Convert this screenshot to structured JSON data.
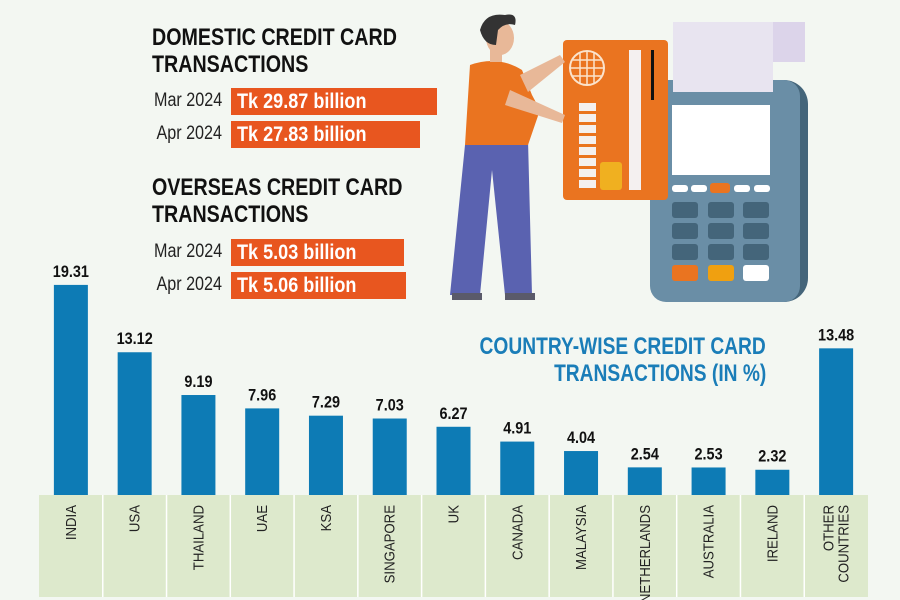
{
  "domestic": {
    "title_line1": "DOMESTIC CREDIT CARD",
    "title_line2": "TRANSACTIONS",
    "rows": [
      {
        "label": "Mar 2024",
        "value_text": "Tk 29.87 billion",
        "value": 29.87
      },
      {
        "label": "Apr 2024",
        "value_text": "Tk 27.83 billion",
        "value": 27.83
      }
    ]
  },
  "overseas": {
    "title_line1": "OVERSEAS CREDIT CARD",
    "title_line2": "TRANSACTIONS",
    "rows": [
      {
        "label": "Mar 2024",
        "value_text": "Tk 5.03 billion",
        "value": 5.03
      },
      {
        "label": "Apr 2024",
        "value_text": "Tk 5.06 billion",
        "value": 5.06
      }
    ]
  },
  "colors": {
    "orange": "#e8561f",
    "blue": "#0d7bb5",
    "title_blue": "#1a7db8",
    "band": "#dde9cc",
    "background": "#f3f7f2"
  },
  "chart_data": {
    "type": "bar",
    "title_line1": "COUNTRY-WISE CREDIT CARD",
    "title_line2": "TRANSACTIONS (IN %)",
    "categories": [
      "INDIA",
      "USA",
      "THAILAND",
      "UAE",
      "KSA",
      "SINGAPORE",
      "UK",
      "CANADA",
      "MALAYSIA",
      "NETHERLANDS",
      "AUSTRALIA",
      "IRELAND",
      "OTHER COUNTRIES"
    ],
    "values": [
      19.31,
      13.12,
      9.19,
      7.96,
      7.29,
      7.03,
      6.27,
      4.91,
      4.04,
      2.54,
      2.53,
      2.32,
      13.48
    ],
    "value_labels": [
      "19.31",
      "13.12",
      "9.19",
      "7.96",
      "7.29",
      "7.03",
      "6.27",
      "4.91",
      "4.04",
      "2.54",
      "2.53",
      "2.32",
      "13.48"
    ],
    "xlabel": "",
    "ylabel": "",
    "ylim": [
      0,
      20
    ],
    "grid": false,
    "legend": "none"
  }
}
